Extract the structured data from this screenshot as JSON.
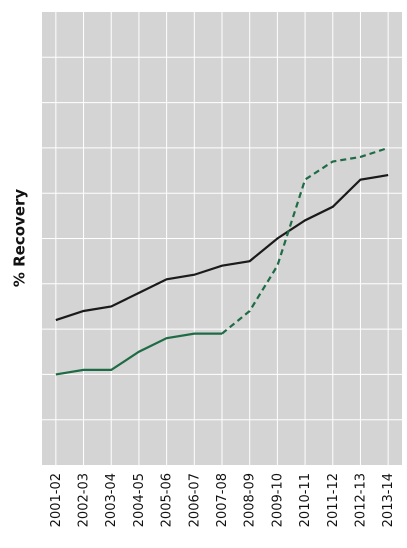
{
  "chart_data": {
    "type": "line",
    "y_label": "% Recovery",
    "categories": [
      "2001-02",
      "2002-03",
      "2003-04",
      "2004-05",
      "2005-06",
      "2006-07",
      "2007-08",
      "2008-09",
      "2009-10",
      "2010-11",
      "2011-12",
      "2012-13",
      "2013-14"
    ],
    "series": [
      {
        "color": "#1a1a1a",
        "values": [
          3.2,
          3.4,
          3.5,
          3.8,
          4.1,
          4.2,
          4.4,
          4.5,
          5.0,
          5.4,
          5.7,
          6.3,
          6.4
        ]
      },
      {
        "color": "#1e6b45",
        "values": [
          2.0,
          2.1,
          2.1,
          2.5,
          2.8,
          2.9,
          2.9,
          null,
          null,
          null,
          null,
          null,
          null
        ]
      },
      {
        "color": "#1e6b45",
        "style": "dashed",
        "values": [
          null,
          null,
          null,
          null,
          null,
          null,
          2.9,
          3.4,
          4.4,
          6.3,
          6.7,
          6.8,
          7.0
        ]
      }
    ],
    "ylim": [
      0,
      10
    ],
    "yticks": [
      1,
      2,
      3,
      4,
      5,
      6,
      7,
      8,
      9
    ],
    "grid": true,
    "background": "#d4d4d4"
  }
}
